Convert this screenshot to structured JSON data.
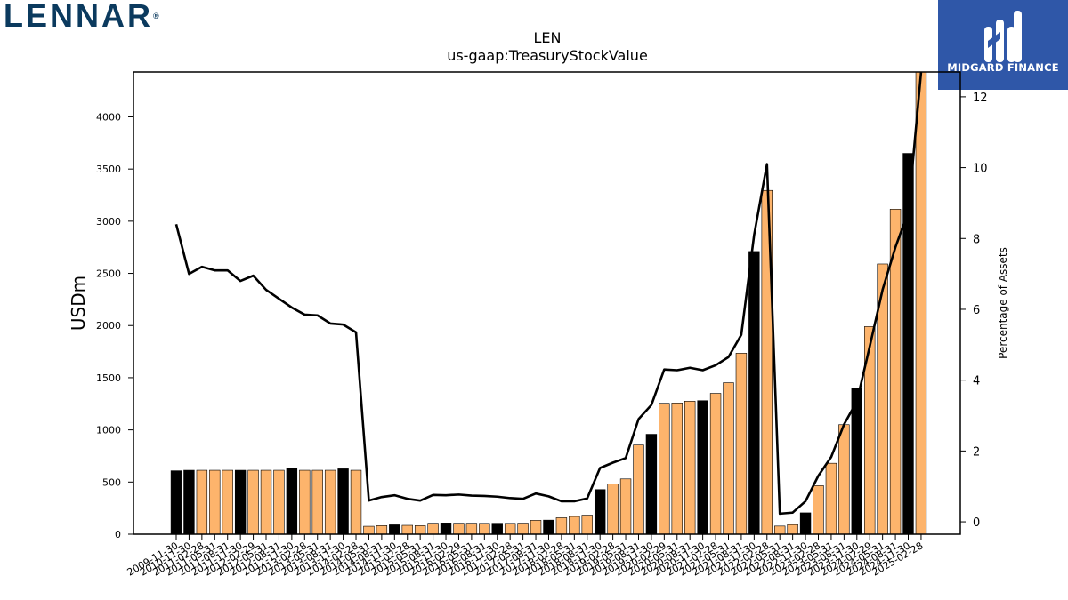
{
  "logos": {
    "company": "LENNAR",
    "company_mark": "®",
    "sponsor": "MIDGARD FINANCE"
  },
  "chart_data": {
    "type": "bar",
    "title": "LEN",
    "subtitle": "us-gaap:TreasuryStockValue",
    "ylabel": "USDm",
    "y2label": "Percentage of Assets",
    "ylim": [
      0,
      4430
    ],
    "y2lim": [
      -0.35,
      12.7
    ],
    "yticks": [
      0,
      500,
      1000,
      1500,
      2000,
      2500,
      3000,
      3500,
      4000
    ],
    "y2ticks": [
      0,
      2,
      4,
      6,
      8,
      10,
      12
    ],
    "colors": {
      "bar_annual": "#000000",
      "bar_quarter": "#fdb46c",
      "line": "#000000"
    },
    "categories": [
      "2009-11-30",
      "2010-11-30",
      "2011-02-28",
      "2011-05-31",
      "2011-08-31",
      "2011-11-30",
      "2012-02-29",
      "2012-05-31",
      "2012-08-31",
      "2012-11-30",
      "2013-02-28",
      "2013-05-31",
      "2013-08-31",
      "2013-11-30",
      "2014-02-28",
      "2014-05-31",
      "2014-08-31",
      "2014-11-30",
      "2015-02-28",
      "2015-05-31",
      "2015-08-31",
      "2015-11-30",
      "2016-02-29",
      "2016-05-31",
      "2016-08-31",
      "2016-11-30",
      "2017-02-28",
      "2017-05-31",
      "2017-08-31",
      "2017-11-30",
      "2018-02-28",
      "2018-05-31",
      "2018-08-31",
      "2018-11-30",
      "2019-02-28",
      "2019-05-31",
      "2019-08-31",
      "2019-11-30",
      "2020-02-29",
      "2020-05-31",
      "2020-08-31",
      "2020-11-30",
      "2021-02-28",
      "2021-05-31",
      "2021-08-31",
      "2021-11-30",
      "2022-02-28",
      "2022-05-31",
      "2022-08-31",
      "2022-11-30",
      "2023-02-28",
      "2023-05-31",
      "2023-08-31",
      "2023-11-30",
      "2024-02-29",
      "2024-05-31",
      "2024-08-31",
      "2024-11-30",
      "2025-02-28"
    ],
    "values": [
      608,
      613,
      613,
      613,
      613,
      613,
      613,
      613,
      613,
      634,
      613,
      613,
      613,
      627,
      613,
      76,
      82,
      90,
      85,
      82,
      105,
      108,
      105,
      105,
      104,
      105,
      104,
      106,
      133,
      135,
      158,
      170,
      183,
      428,
      482,
      530,
      855,
      958,
      1255,
      1258,
      1275,
      1280,
      1350,
      1452,
      1735,
      2710,
      3295,
      78,
      92,
      205,
      465,
      680,
      1050,
      1395,
      1990,
      2590,
      3115,
      3650,
      4430
    ],
    "annual": [
      true,
      true,
      false,
      false,
      false,
      true,
      false,
      false,
      false,
      true,
      false,
      false,
      false,
      true,
      false,
      false,
      false,
      true,
      false,
      false,
      false,
      true,
      false,
      false,
      false,
      true,
      false,
      false,
      false,
      true,
      false,
      false,
      false,
      true,
      false,
      false,
      false,
      true,
      false,
      false,
      false,
      true,
      false,
      false,
      false,
      true,
      false,
      false,
      false,
      true,
      false,
      false,
      false,
      true,
      false,
      false,
      false,
      true,
      false
    ],
    "pct_of_assets": [
      8.4,
      7.0,
      7.2,
      7.1,
      7.1,
      6.8,
      6.95,
      6.55,
      6.3,
      6.05,
      5.85,
      5.83,
      5.6,
      5.57,
      5.35,
      0.6,
      0.7,
      0.75,
      0.65,
      0.6,
      0.76,
      0.75,
      0.77,
      0.74,
      0.73,
      0.71,
      0.67,
      0.65,
      0.8,
      0.72,
      0.58,
      0.58,
      0.66,
      1.52,
      1.67,
      1.8,
      2.9,
      3.3,
      4.3,
      4.28,
      4.35,
      4.28,
      4.42,
      4.65,
      5.28,
      8.1,
      10.1,
      0.23,
      0.26,
      0.58,
      1.3,
      1.83,
      2.75,
      3.4,
      4.95,
      6.55,
      7.75,
      8.75,
      12.7
    ]
  }
}
